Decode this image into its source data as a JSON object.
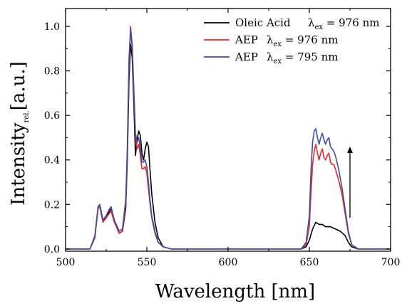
{
  "chart_data": {
    "type": "line",
    "xlabel": "Wavelength [nm]",
    "ylabel": {
      "main": "Intensity",
      "sub": "rel.",
      "unit": "[a.u.]"
    },
    "xlim": [
      500,
      700
    ],
    "ylim": [
      -0.01,
      1.08
    ],
    "x_ticks": [
      500,
      550,
      600,
      650,
      700
    ],
    "y_ticks": [
      0.0,
      0.2,
      0.4,
      0.6,
      0.8,
      1.0
    ],
    "x_tick_labels": [
      "500",
      "550",
      "600",
      "650",
      "700"
    ],
    "y_tick_labels": [
      "0.0",
      "0.2",
      "0.4",
      "0.6",
      "0.8",
      "1.0"
    ],
    "grid": false,
    "legend_position": "top-right",
    "annotation": {
      "type": "arrow",
      "direction": "up",
      "x": 675,
      "y_from": 0.14,
      "y_to": 0.46
    },
    "series": [
      {
        "name": "Oleic Acid",
        "lambda_label": "λ",
        "lambda_sub": "ex",
        "lambda_value": "= 976 nm",
        "color": "#000000",
        "points": [
          [
            500,
            0.0
          ],
          [
            515,
            0.0
          ],
          [
            518,
            0.05
          ],
          [
            520,
            0.19
          ],
          [
            521,
            0.2
          ],
          [
            523,
            0.13
          ],
          [
            525,
            0.14
          ],
          [
            527,
            0.17
          ],
          [
            528,
            0.18
          ],
          [
            530,
            0.13
          ],
          [
            533,
            0.07
          ],
          [
            535,
            0.08
          ],
          [
            537,
            0.18
          ],
          [
            538,
            0.4
          ],
          [
            539,
            0.75
          ],
          [
            540,
            0.92
          ],
          [
            541,
            0.86
          ],
          [
            542,
            0.65
          ],
          [
            543,
            0.42
          ],
          [
            544,
            0.49
          ],
          [
            545,
            0.53
          ],
          [
            546,
            0.51
          ],
          [
            547,
            0.43
          ],
          [
            548,
            0.4
          ],
          [
            549,
            0.45
          ],
          [
            550,
            0.48
          ],
          [
            551,
            0.46
          ],
          [
            552,
            0.35
          ],
          [
            553,
            0.25
          ],
          [
            555,
            0.12
          ],
          [
            557,
            0.05
          ],
          [
            560,
            0.01
          ],
          [
            565,
            0.0
          ],
          [
            640,
            0.0
          ],
          [
            645,
            0.0
          ],
          [
            648,
            0.01
          ],
          [
            650,
            0.04
          ],
          [
            652,
            0.09
          ],
          [
            654,
            0.12
          ],
          [
            656,
            0.11
          ],
          [
            658,
            0.11
          ],
          [
            660,
            0.1
          ],
          [
            663,
            0.1
          ],
          [
            666,
            0.09
          ],
          [
            669,
            0.08
          ],
          [
            672,
            0.06
          ],
          [
            674,
            0.03
          ],
          [
            676,
            0.01
          ],
          [
            680,
            0.0
          ],
          [
            700,
            0.0
          ]
        ]
      },
      {
        "name": "AEP",
        "lambda_label": "λ",
        "lambda_sub": "ex",
        "lambda_value": "= 976 nm",
        "color": "#e8262b",
        "points": [
          [
            500,
            0.0
          ],
          [
            515,
            0.0
          ],
          [
            518,
            0.05
          ],
          [
            520,
            0.18
          ],
          [
            521,
            0.19
          ],
          [
            523,
            0.12
          ],
          [
            525,
            0.14
          ],
          [
            527,
            0.16
          ],
          [
            528,
            0.17
          ],
          [
            530,
            0.12
          ],
          [
            533,
            0.07
          ],
          [
            535,
            0.08
          ],
          [
            537,
            0.2
          ],
          [
            538,
            0.45
          ],
          [
            539,
            0.85
          ],
          [
            540,
            1.0
          ],
          [
            541,
            0.9
          ],
          [
            542,
            0.7
          ],
          [
            543,
            0.5
          ],
          [
            544,
            0.45
          ],
          [
            545,
            0.47
          ],
          [
            546,
            0.42
          ],
          [
            547,
            0.36
          ],
          [
            548,
            0.36
          ],
          [
            549,
            0.37
          ],
          [
            550,
            0.34
          ],
          [
            551,
            0.27
          ],
          [
            552,
            0.2
          ],
          [
            553,
            0.14
          ],
          [
            555,
            0.07
          ],
          [
            557,
            0.03
          ],
          [
            560,
            0.01
          ],
          [
            565,
            0.0
          ],
          [
            640,
            0.0
          ],
          [
            645,
            0.0
          ],
          [
            648,
            0.02
          ],
          [
            650,
            0.1
          ],
          [
            651,
            0.25
          ],
          [
            652,
            0.38
          ],
          [
            653,
            0.44
          ],
          [
            654,
            0.47
          ],
          [
            655,
            0.43
          ],
          [
            656,
            0.4
          ],
          [
            657,
            0.43
          ],
          [
            658,
            0.45
          ],
          [
            659,
            0.41
          ],
          [
            660,
            0.4
          ],
          [
            661,
            0.42
          ],
          [
            662,
            0.43
          ],
          [
            663,
            0.39
          ],
          [
            664,
            0.38
          ],
          [
            665,
            0.38
          ],
          [
            666,
            0.36
          ],
          [
            668,
            0.31
          ],
          [
            670,
            0.25
          ],
          [
            672,
            0.16
          ],
          [
            674,
            0.07
          ],
          [
            676,
            0.02
          ],
          [
            680,
            0.0
          ],
          [
            700,
            0.0
          ]
        ]
      },
      {
        "name": "AEP",
        "lambda_label": "λ",
        "lambda_sub": "ex",
        "lambda_value": "= 795 nm",
        "color": "#3a4ea6",
        "points": [
          [
            500,
            0.0
          ],
          [
            515,
            0.0
          ],
          [
            518,
            0.06
          ],
          [
            520,
            0.19
          ],
          [
            521,
            0.2
          ],
          [
            523,
            0.13
          ],
          [
            525,
            0.15
          ],
          [
            527,
            0.18
          ],
          [
            528,
            0.19
          ],
          [
            530,
            0.13
          ],
          [
            533,
            0.08
          ],
          [
            535,
            0.09
          ],
          [
            537,
            0.22
          ],
          [
            538,
            0.45
          ],
          [
            539,
            0.8
          ],
          [
            540,
            0.99
          ],
          [
            541,
            0.92
          ],
          [
            542,
            0.72
          ],
          [
            543,
            0.52
          ],
          [
            544,
            0.48
          ],
          [
            545,
            0.5
          ],
          [
            546,
            0.45
          ],
          [
            547,
            0.39
          ],
          [
            548,
            0.39
          ],
          [
            549,
            0.4
          ],
          [
            550,
            0.37
          ],
          [
            551,
            0.3
          ],
          [
            552,
            0.22
          ],
          [
            553,
            0.15
          ],
          [
            555,
            0.08
          ],
          [
            557,
            0.03
          ],
          [
            560,
            0.01
          ],
          [
            565,
            0.0
          ],
          [
            640,
            0.0
          ],
          [
            645,
            0.0
          ],
          [
            648,
            0.03
          ],
          [
            650,
            0.15
          ],
          [
            651,
            0.35
          ],
          [
            652,
            0.48
          ],
          [
            653,
            0.53
          ],
          [
            654,
            0.54
          ],
          [
            655,
            0.5
          ],
          [
            656,
            0.47
          ],
          [
            657,
            0.5
          ],
          [
            658,
            0.52
          ],
          [
            659,
            0.49
          ],
          [
            660,
            0.47
          ],
          [
            661,
            0.49
          ],
          [
            662,
            0.5
          ],
          [
            663,
            0.46
          ],
          [
            664,
            0.45
          ],
          [
            665,
            0.44
          ],
          [
            666,
            0.42
          ],
          [
            668,
            0.36
          ],
          [
            670,
            0.28
          ],
          [
            672,
            0.18
          ],
          [
            674,
            0.08
          ],
          [
            676,
            0.02
          ],
          [
            680,
            0.0
          ],
          [
            700,
            0.0
          ]
        ]
      }
    ]
  }
}
